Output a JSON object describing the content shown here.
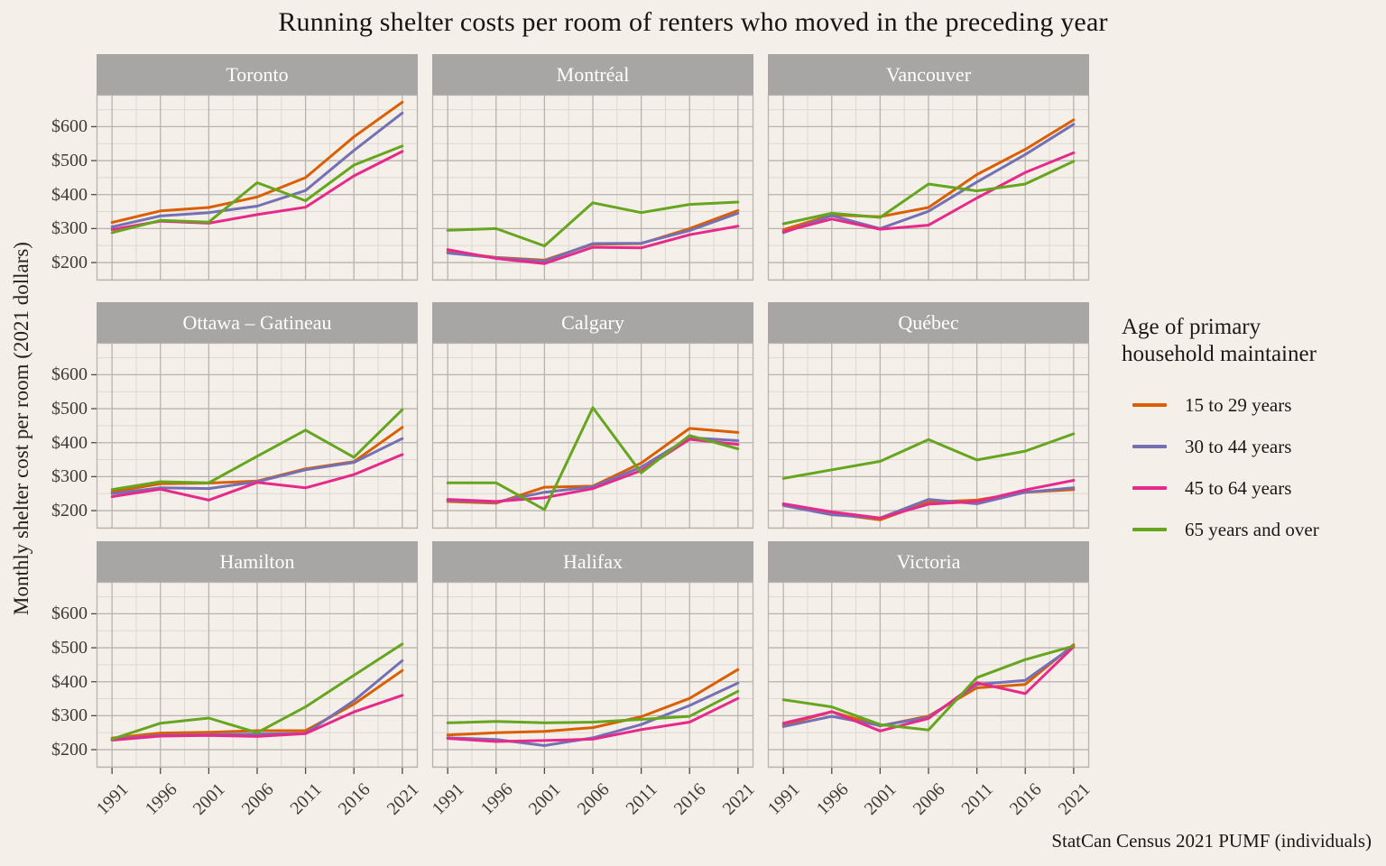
{
  "title": "Running shelter costs per room of renters who moved in the preceding year",
  "y_axis_title": "Monthly shelter cost per room (2021 dollars)",
  "caption": "StatCan Census 2021 PUMF (individuals)",
  "legend": {
    "title": "Age of primary household maintainer",
    "title_lines": [
      "Age of primary",
      "household maintainer"
    ],
    "items": [
      {
        "label": "15 to 29 years",
        "color": "#d95f02"
      },
      {
        "label": "30 to 44 years",
        "color": "#7570b3"
      },
      {
        "label": "45 to 64 years",
        "color": "#e7298a"
      },
      {
        "label": "65 years and over",
        "color": "#66a61e"
      }
    ]
  },
  "colors": {
    "background": "#f4efe9",
    "strip_bg": "#a7a6a4",
    "strip_text": "#ffffff",
    "grid_major": "#b8b3ae",
    "grid_minor": "#ddd8d2",
    "tick": "#4d4a47",
    "axis_text": "#3e3a36"
  },
  "chart_data": {
    "type": "line",
    "x": [
      1991,
      1996,
      2001,
      2006,
      2011,
      2016,
      2021
    ],
    "x_tick_labels": [
      "1991",
      "1996",
      "2001",
      "2006",
      "2011",
      "2016",
      "2021"
    ],
    "y_ticks": [
      200,
      300,
      400,
      500,
      600
    ],
    "y_tick_labels": [
      "$200",
      "$300",
      "$400",
      "$500",
      "$600"
    ],
    "y_minor": [
      150,
      250,
      350,
      450,
      550,
      650
    ],
    "xlim": [
      1989.4,
      2022.6
    ],
    "ylim": [
      147,
      694
    ],
    "grid": true,
    "legend_position": "right",
    "series": [
      {
        "name": "15 to 29 years",
        "color": "#d95f02"
      },
      {
        "name": "30 to 44 years",
        "color": "#7570b3"
      },
      {
        "name": "45 to 64 years",
        "color": "#e7298a"
      },
      {
        "name": "65 years and over",
        "color": "#66a61e"
      }
    ],
    "facets": [
      {
        "name": "Toronto",
        "values": [
          [
            318,
            352,
            362,
            393,
            450,
            570,
            672
          ],
          [
            305,
            337,
            347,
            366,
            412,
            530,
            640
          ],
          [
            297,
            322,
            316,
            341,
            363,
            455,
            527
          ],
          [
            288,
            324,
            319,
            435,
            382,
            487,
            543
          ]
        ]
      },
      {
        "name": "Montréal",
        "values": [
          [
            232,
            215,
            207,
            254,
            256,
            300,
            353
          ],
          [
            228,
            214,
            204,
            256,
            257,
            294,
            345
          ],
          [
            238,
            212,
            197,
            245,
            243,
            282,
            307
          ],
          [
            295,
            300,
            249,
            376,
            347,
            371,
            378
          ]
        ]
      },
      {
        "name": "Vancouver",
        "values": [
          [
            297,
            340,
            335,
            362,
            459,
            533,
            620
          ],
          [
            288,
            338,
            300,
            351,
            437,
            518,
            607
          ],
          [
            291,
            328,
            298,
            310,
            390,
            465,
            523
          ],
          [
            314,
            345,
            333,
            431,
            411,
            431,
            498
          ]
        ]
      },
      {
        "name": "Ottawa – Gatineau",
        "values": [
          [
            255,
            279,
            281,
            287,
            323,
            344,
            445
          ],
          [
            250,
            267,
            265,
            285,
            320,
            342,
            412
          ],
          [
            241,
            263,
            231,
            283,
            267,
            306,
            365
          ],
          [
            262,
            285,
            282,
            360,
            437,
            357,
            497
          ]
        ]
      },
      {
        "name": "Calgary",
        "values": [
          [
            227,
            222,
            269,
            272,
            340,
            442,
            430
          ],
          [
            230,
            225,
            254,
            270,
            328,
            415,
            406
          ],
          [
            233,
            227,
            238,
            265,
            318,
            410,
            395
          ],
          [
            282,
            282,
            203,
            503,
            311,
            421,
            382
          ]
        ]
      },
      {
        "name": "Québec",
        "values": [
          [
            218,
            191,
            173,
            225,
            231,
            254,
            262
          ],
          [
            215,
            188,
            178,
            233,
            220,
            254,
            267
          ],
          [
            220,
            196,
            178,
            219,
            227,
            261,
            289
          ],
          [
            295,
            320,
            345,
            409,
            349,
            375,
            426
          ]
        ]
      },
      {
        "name": "Hamilton",
        "values": [
          [
            234,
            249,
            251,
            256,
            256,
            334,
            433
          ],
          [
            230,
            242,
            244,
            246,
            248,
            344,
            462
          ],
          [
            228,
            240,
            242,
            239,
            247,
            311,
            360
          ],
          [
            231,
            278,
            293,
            250,
            326,
            419,
            511
          ]
        ]
      },
      {
        "name": "Halifax",
        "values": [
          [
            243,
            250,
            254,
            265,
            297,
            351,
            436
          ],
          [
            235,
            230,
            212,
            235,
            274,
            330,
            396
          ],
          [
            233,
            224,
            227,
            231,
            259,
            281,
            351
          ],
          [
            279,
            283,
            279,
            281,
            289,
            298,
            372
          ]
        ]
      },
      {
        "name": "Victoria",
        "values": [
          [
            272,
            312,
            270,
            299,
            382,
            392,
            509
          ],
          [
            268,
            298,
            271,
            295,
            392,
            404,
            505
          ],
          [
            278,
            312,
            255,
            292,
            397,
            365,
            503
          ],
          [
            347,
            326,
            274,
            258,
            412,
            465,
            505
          ]
        ]
      }
    ]
  }
}
